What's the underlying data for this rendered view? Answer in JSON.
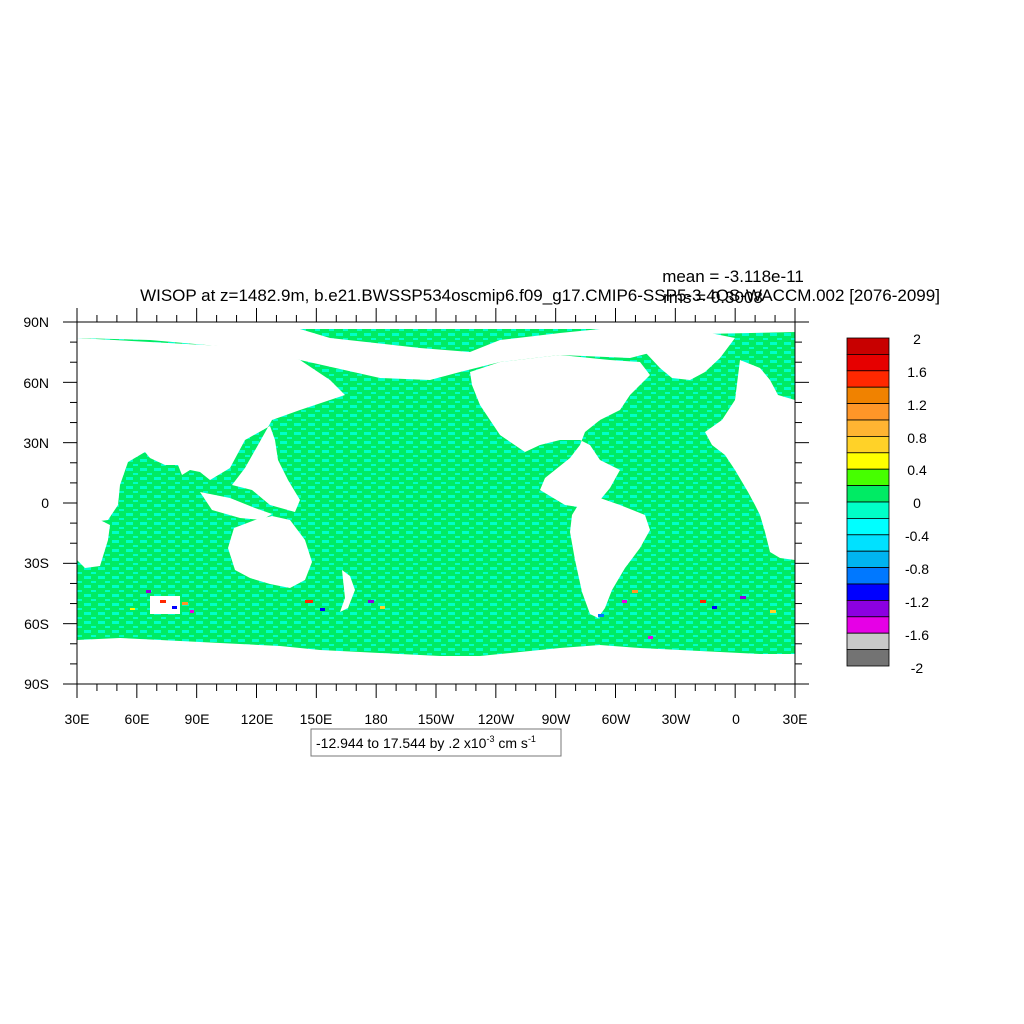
{
  "title": "WISOP at z=1482.9m, b.e21.BWSSP534oscmip6.f09_g17.CMIP6-SSP5-3.4OS-WACCM.002 [2076-2099]",
  "stats": {
    "mean": "mean = -3.118e-11",
    "rms": "rms = 0.3008"
  },
  "range_box": {
    "text": "-12.944 to 17.544 by .2 x10",
    "exp": "-3",
    "unit": " cm s",
    "unit_exp": "-1"
  },
  "axes": {
    "x_ticks": [
      "30E",
      "60E",
      "90E",
      "120E",
      "150E",
      "180",
      "150W",
      "120W",
      "90W",
      "60W",
      "30W",
      "0",
      "30E"
    ],
    "y_ticks": [
      "90N",
      "60N",
      "30N",
      "0",
      "30S",
      "60S",
      "90S"
    ]
  },
  "colorbar": {
    "labels": [
      "2",
      "1.6",
      "1.2",
      "0.8",
      "0.4",
      "0",
      "-0.4",
      "-0.8",
      "-1.2",
      "-1.6",
      "-2"
    ],
    "colors": [
      "#c80000",
      "#e60000",
      "#ff2800",
      "#f08200",
      "#ff9628",
      "#ffb432",
      "#ffd228",
      "#ffff00",
      "#46ff00",
      "#00eb64",
      "#00ffc8",
      "#00ffff",
      "#00e1ff",
      "#00b4f0",
      "#0078ff",
      "#0000ff",
      "#8c00e1",
      "#e600e6",
      "#c8c8c8",
      "#737373"
    ]
  },
  "palette": {
    "ocean_a": "#00eb64",
    "ocean_b": "#00ffc8",
    "land": "#ffffff"
  }
}
